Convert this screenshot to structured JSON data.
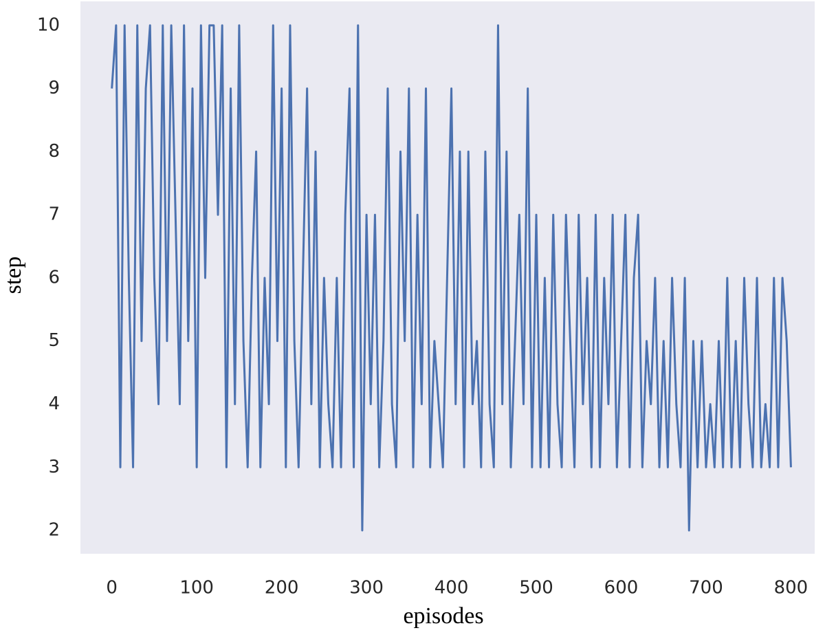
{
  "chart_data": {
    "type": "line",
    "x_label": "episodes",
    "y_label": "step",
    "x": [
      0,
      5,
      10,
      15,
      20,
      25,
      30,
      35,
      40,
      45,
      50,
      55,
      60,
      65,
      70,
      75,
      80,
      85,
      90,
      95,
      100,
      105,
      110,
      115,
      120,
      125,
      130,
      135,
      140,
      145,
      150,
      155,
      160,
      165,
      170,
      175,
      180,
      185,
      190,
      195,
      200,
      205,
      210,
      215,
      220,
      225,
      230,
      235,
      240,
      245,
      250,
      255,
      260,
      265,
      270,
      275,
      280,
      285,
      290,
      295,
      300,
      305,
      310,
      315,
      320,
      325,
      330,
      335,
      340,
      345,
      350,
      355,
      360,
      365,
      370,
      375,
      380,
      385,
      390,
      395,
      400,
      405,
      410,
      415,
      420,
      425,
      430,
      435,
      440,
      445,
      450,
      455,
      460,
      465,
      470,
      475,
      480,
      485,
      490,
      495,
      500,
      505,
      510,
      515,
      520,
      525,
      530,
      535,
      540,
      545,
      550,
      555,
      560,
      565,
      570,
      575,
      580,
      585,
      590,
      595,
      600,
      605,
      610,
      615,
      620,
      625,
      630,
      635,
      640,
      645,
      650,
      655,
      660,
      665,
      670,
      675,
      680,
      685,
      690,
      695,
      700,
      705,
      710,
      715,
      720,
      725,
      730,
      735,
      740,
      745,
      750,
      755,
      760,
      765,
      770,
      775,
      780,
      785,
      790,
      795,
      800
    ],
    "series": [
      {
        "name": "step",
        "color": "#4c72b0",
        "values": [
          9,
          10,
          3,
          10,
          6,
          3,
          10,
          5,
          9,
          10,
          6,
          4,
          10,
          5,
          10,
          7,
          4,
          10,
          5,
          9,
          3,
          10,
          6,
          10,
          10,
          7,
          10,
          3,
          9,
          4,
          10,
          5,
          3,
          6,
          8,
          3,
          6,
          4,
          10,
          5,
          9,
          3,
          10,
          5,
          3,
          6,
          9,
          4,
          8,
          3,
          6,
          4,
          3,
          6,
          3,
          7,
          9,
          3,
          10,
          2,
          7,
          4,
          7,
          3,
          5,
          9,
          4,
          3,
          8,
          5,
          9,
          3,
          7,
          4,
          9,
          3,
          5,
          4,
          3,
          6,
          9,
          4,
          8,
          3,
          8,
          4,
          5,
          3,
          8,
          4,
          3,
          10,
          4,
          8,
          3,
          5,
          7,
          4,
          9,
          3,
          7,
          3,
          6,
          3,
          7,
          4,
          3,
          7,
          5,
          3,
          7,
          4,
          6,
          3,
          7,
          3,
          6,
          4,
          7,
          3,
          5,
          7,
          3,
          6,
          7,
          3,
          5,
          4,
          6,
          3,
          5,
          3,
          6,
          4,
          3,
          6,
          2,
          5,
          3,
          5,
          3,
          4,
          3,
          5,
          3,
          6,
          3,
          5,
          3,
          6,
          4,
          3,
          6,
          3,
          4,
          3,
          6,
          3,
          6,
          5,
          3
        ]
      }
    ],
    "xlim": [
      -37,
      828
    ],
    "ylim": [
      1.63,
      10.38
    ],
    "xticks": [
      0,
      100,
      200,
      300,
      400,
      500,
      600,
      700,
      800
    ],
    "yticks": [
      2,
      3,
      4,
      5,
      6,
      7,
      8,
      9,
      10
    ],
    "grid": false
  }
}
